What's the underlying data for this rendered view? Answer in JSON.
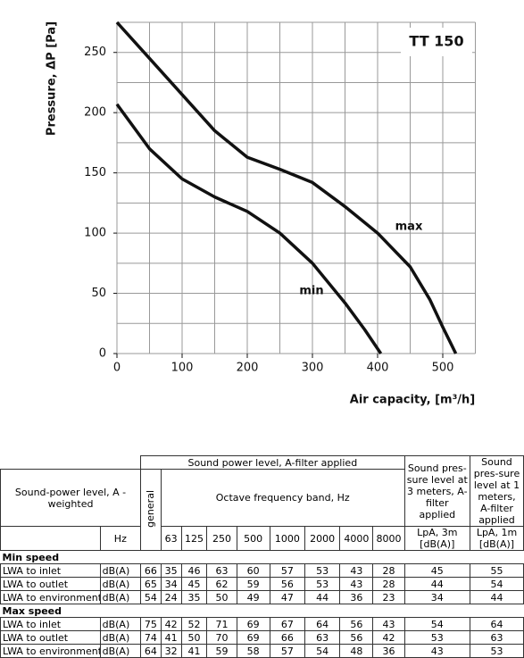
{
  "chart_data": {
    "type": "line",
    "title": "TT 150",
    "x_label": "Air capacity, [m³/h]",
    "y_label": "Pressure, ΔP [Pa]",
    "xlim": [
      0,
      550
    ],
    "ylim": [
      0,
      275
    ],
    "xticks": [
      0,
      100,
      200,
      300,
      400,
      500
    ],
    "yticks": [
      0,
      50,
      100,
      150,
      200,
      250
    ],
    "xgrid": [
      0,
      50,
      100,
      150,
      200,
      250,
      300,
      350,
      400,
      450,
      500,
      550
    ],
    "ygrid": [
      0,
      25,
      50,
      75,
      100,
      125,
      150,
      175,
      200,
      225,
      250,
      275
    ],
    "grid": true,
    "series": [
      {
        "name": "max",
        "color": "#111111",
        "x": [
          0,
          50,
          100,
          150,
          200,
          250,
          300,
          350,
          400,
          450,
          480,
          500,
          520
        ],
        "values": [
          275,
          245,
          215,
          185,
          163,
          153,
          142,
          122,
          100,
          72,
          45,
          22,
          0
        ]
      },
      {
        "name": "min",
        "color": "#111111",
        "x": [
          0,
          50,
          100,
          150,
          200,
          250,
          300,
          350,
          380,
          405
        ],
        "values": [
          207,
          170,
          145,
          130,
          118,
          100,
          75,
          42,
          20,
          0
        ]
      }
    ]
  },
  "table": {
    "header": {
      "power": "Sound power level, A-filter applied",
      "weighted": "Sound-power level, A - weighted",
      "general": "general",
      "octave": "Octave frequency band, Hz",
      "pressure_3m": "Sound pres-sure level at 3 meters, A-filter applied",
      "pressure_1m": "Sound pres-sure level at 1 meters, A-filter applied",
      "hz": "Hz",
      "bands": [
        63,
        125,
        250,
        500,
        1000,
        2000,
        4000,
        8000
      ],
      "lpa_3m": "LpA, 3m [dB(A)]",
      "lpa_1m": "LpA, 1m [dB(A)]"
    },
    "sections": [
      {
        "name": "Min speed",
        "rows": [
          {
            "label": "LWA to inlet",
            "unit": "dB(A)",
            "values": [
              66,
              35,
              46,
              63,
              60,
              57,
              53,
              43,
              28,
              45,
              55
            ]
          },
          {
            "label": "LWA to outlet",
            "unit": "dB(A)",
            "values": [
              65,
              34,
              45,
              62,
              59,
              56,
              53,
              43,
              28,
              44,
              54
            ]
          },
          {
            "label": "LWA to environment",
            "unit": "dB(A)",
            "values": [
              54,
              24,
              35,
              50,
              49,
              47,
              44,
              36,
              23,
              34,
              44
            ]
          }
        ]
      },
      {
        "name": "Max speed",
        "rows": [
          {
            "label": "LWA to inlet",
            "unit": "dB(A)",
            "values": [
              75,
              42,
              52,
              71,
              69,
              67,
              64,
              56,
              43,
              54,
              64
            ]
          },
          {
            "label": "LWA to outlet",
            "unit": "dB(A)",
            "values": [
              74,
              41,
              50,
              70,
              69,
              66,
              63,
              56,
              42,
              53,
              63
            ]
          },
          {
            "label": "LWA to environment",
            "unit": "dB(A)",
            "values": [
              64,
              32,
              41,
              59,
              58,
              57,
              54,
              48,
              36,
              43,
              53
            ]
          }
        ]
      }
    ]
  }
}
